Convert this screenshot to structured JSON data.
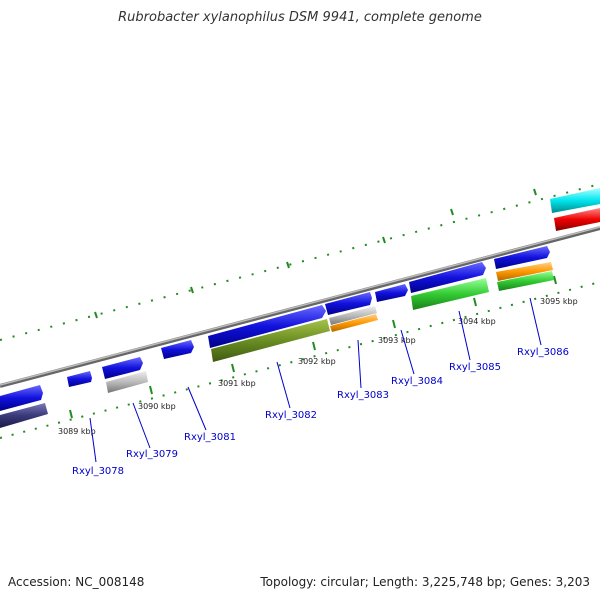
{
  "title": "Rubrobacter xylanophilus DSM 9941, complete genome",
  "accession": "Accession: NC_008148",
  "summary": "Topology: circular; Length: 3,225,748 bp; Genes: 3,203",
  "scale_labels": [
    "3089 kbp",
    "3090 kbp",
    "3091 kbp",
    "3092 kbp",
    "3093 kbp",
    "3094 kbp",
    "3095 kbp"
  ],
  "gene_labels": [
    "Rxyl_3078",
    "Rxyl_3079",
    "Rxyl_3081",
    "Rxyl_3082",
    "Rxyl_3083",
    "Rxyl_3084",
    "Rxyl_3085",
    "Rxyl_3086"
  ],
  "colors": {
    "cds": "#1111dd",
    "rna": "#aaaaaa",
    "cog_olive": "#6b8e23",
    "cog_orange": "#ff9900",
    "cog_green": "#33cc33",
    "cog_navy": "#3a3a7a",
    "cog_cyan": "#00e5ee",
    "cog_red": "#ee0000",
    "tick": "#228b22",
    "backbone": "#888888",
    "label": "#0000cc"
  }
}
